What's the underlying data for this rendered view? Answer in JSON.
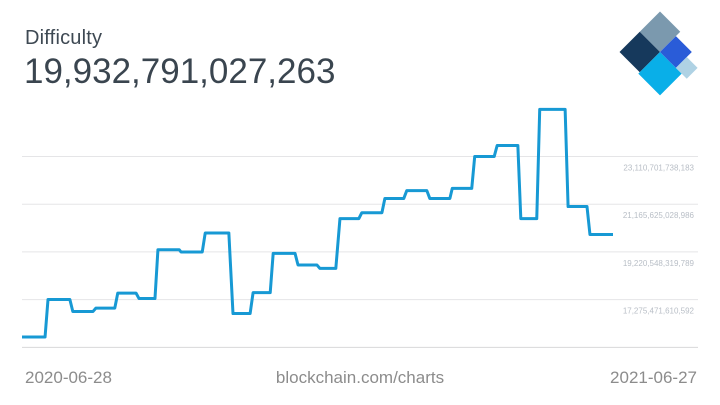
{
  "header": {
    "title": "Difficulty",
    "value": "19,932,791,027,263"
  },
  "footer": {
    "start_date": "2020-06-28",
    "watermark": "blockchain.com/charts",
    "end_date": "2021-06-27"
  },
  "logo": {
    "name": "blockchain-com-logo",
    "colors": {
      "slate": "#7B99AE",
      "navy": "#16395C",
      "royal": "#2A5CD8",
      "cyan": "#09AFE8",
      "light": "#AFD2E4"
    }
  },
  "chart_data": {
    "type": "line",
    "line_style": "step",
    "title": "Difficulty",
    "xlabel": "",
    "ylabel": "",
    "unit": "trillions (1e12)",
    "line_color": "#1799D4",
    "grid_color": "#E5E5E7",
    "axis_line_color": "#D8D8DA",
    "tick_label_color": "#B8BEC6",
    "legend": "none",
    "x_range": [
      "2020-06-28",
      "2021-06-27"
    ],
    "ylim_T": [
      15.33,
      25.5
    ],
    "gridlines": [
      {
        "value_T": 23.110701738183,
        "label": "23,110,701,738,183"
      },
      {
        "value_T": 21.165625028986,
        "label": "21,165,625,028,986"
      },
      {
        "value_T": 19.220548319789,
        "label": "19,220,548,319,789"
      },
      {
        "value_T": 17.275471610592,
        "label": "17,275,471,610,592"
      },
      {
        "value_T": 15.330394901395,
        "label": ""
      }
    ],
    "series": [
      {
        "name": "Difficulty",
        "steps": [
          {
            "t0": 0.0,
            "t1": 0.039,
            "v": 15.75
          },
          {
            "t0": 0.044,
            "t1": 0.081,
            "v": 17.28
          },
          {
            "t0": 0.086,
            "t1": 0.12,
            "v": 16.79
          },
          {
            "t0": 0.125,
            "t1": 0.157,
            "v": 16.93
          },
          {
            "t0": 0.162,
            "t1": 0.193,
            "v": 17.54
          },
          {
            "t0": 0.198,
            "t1": 0.225,
            "v": 17.32
          },
          {
            "t0": 0.23,
            "t1": 0.266,
            "v": 19.31
          },
          {
            "t0": 0.269,
            "t1": 0.305,
            "v": 19.22
          },
          {
            "t0": 0.31,
            "t1": 0.35,
            "v": 19.99
          },
          {
            "t0": 0.357,
            "t1": 0.386,
            "v": 16.71
          },
          {
            "t0": 0.391,
            "t1": 0.42,
            "v": 17.56
          },
          {
            "t0": 0.425,
            "t1": 0.462,
            "v": 19.16
          },
          {
            "t0": 0.467,
            "t1": 0.499,
            "v": 18.69
          },
          {
            "t0": 0.504,
            "t1": 0.531,
            "v": 18.55
          },
          {
            "t0": 0.538,
            "t1": 0.57,
            "v": 20.58
          },
          {
            "t0": 0.575,
            "t1": 0.609,
            "v": 20.82
          },
          {
            "t0": 0.614,
            "t1": 0.646,
            "v": 21.4
          },
          {
            "t0": 0.651,
            "t1": 0.685,
            "v": 21.72
          },
          {
            "t0": 0.69,
            "t1": 0.724,
            "v": 21.4
          },
          {
            "t0": 0.728,
            "t1": 0.761,
            "v": 21.81
          },
          {
            "t0": 0.766,
            "t1": 0.799,
            "v": 23.11
          },
          {
            "t0": 0.804,
            "t1": 0.839,
            "v": 23.56
          },
          {
            "t0": 0.844,
            "t1": 0.871,
            "v": 20.58
          },
          {
            "t0": 0.876,
            "t1": 0.919,
            "v": 25.03
          },
          {
            "t0": 0.924,
            "t1": 0.956,
            "v": 21.07
          },
          {
            "t0": 0.961,
            "t1": 1.0,
            "v": 19.93
          }
        ]
      }
    ]
  }
}
